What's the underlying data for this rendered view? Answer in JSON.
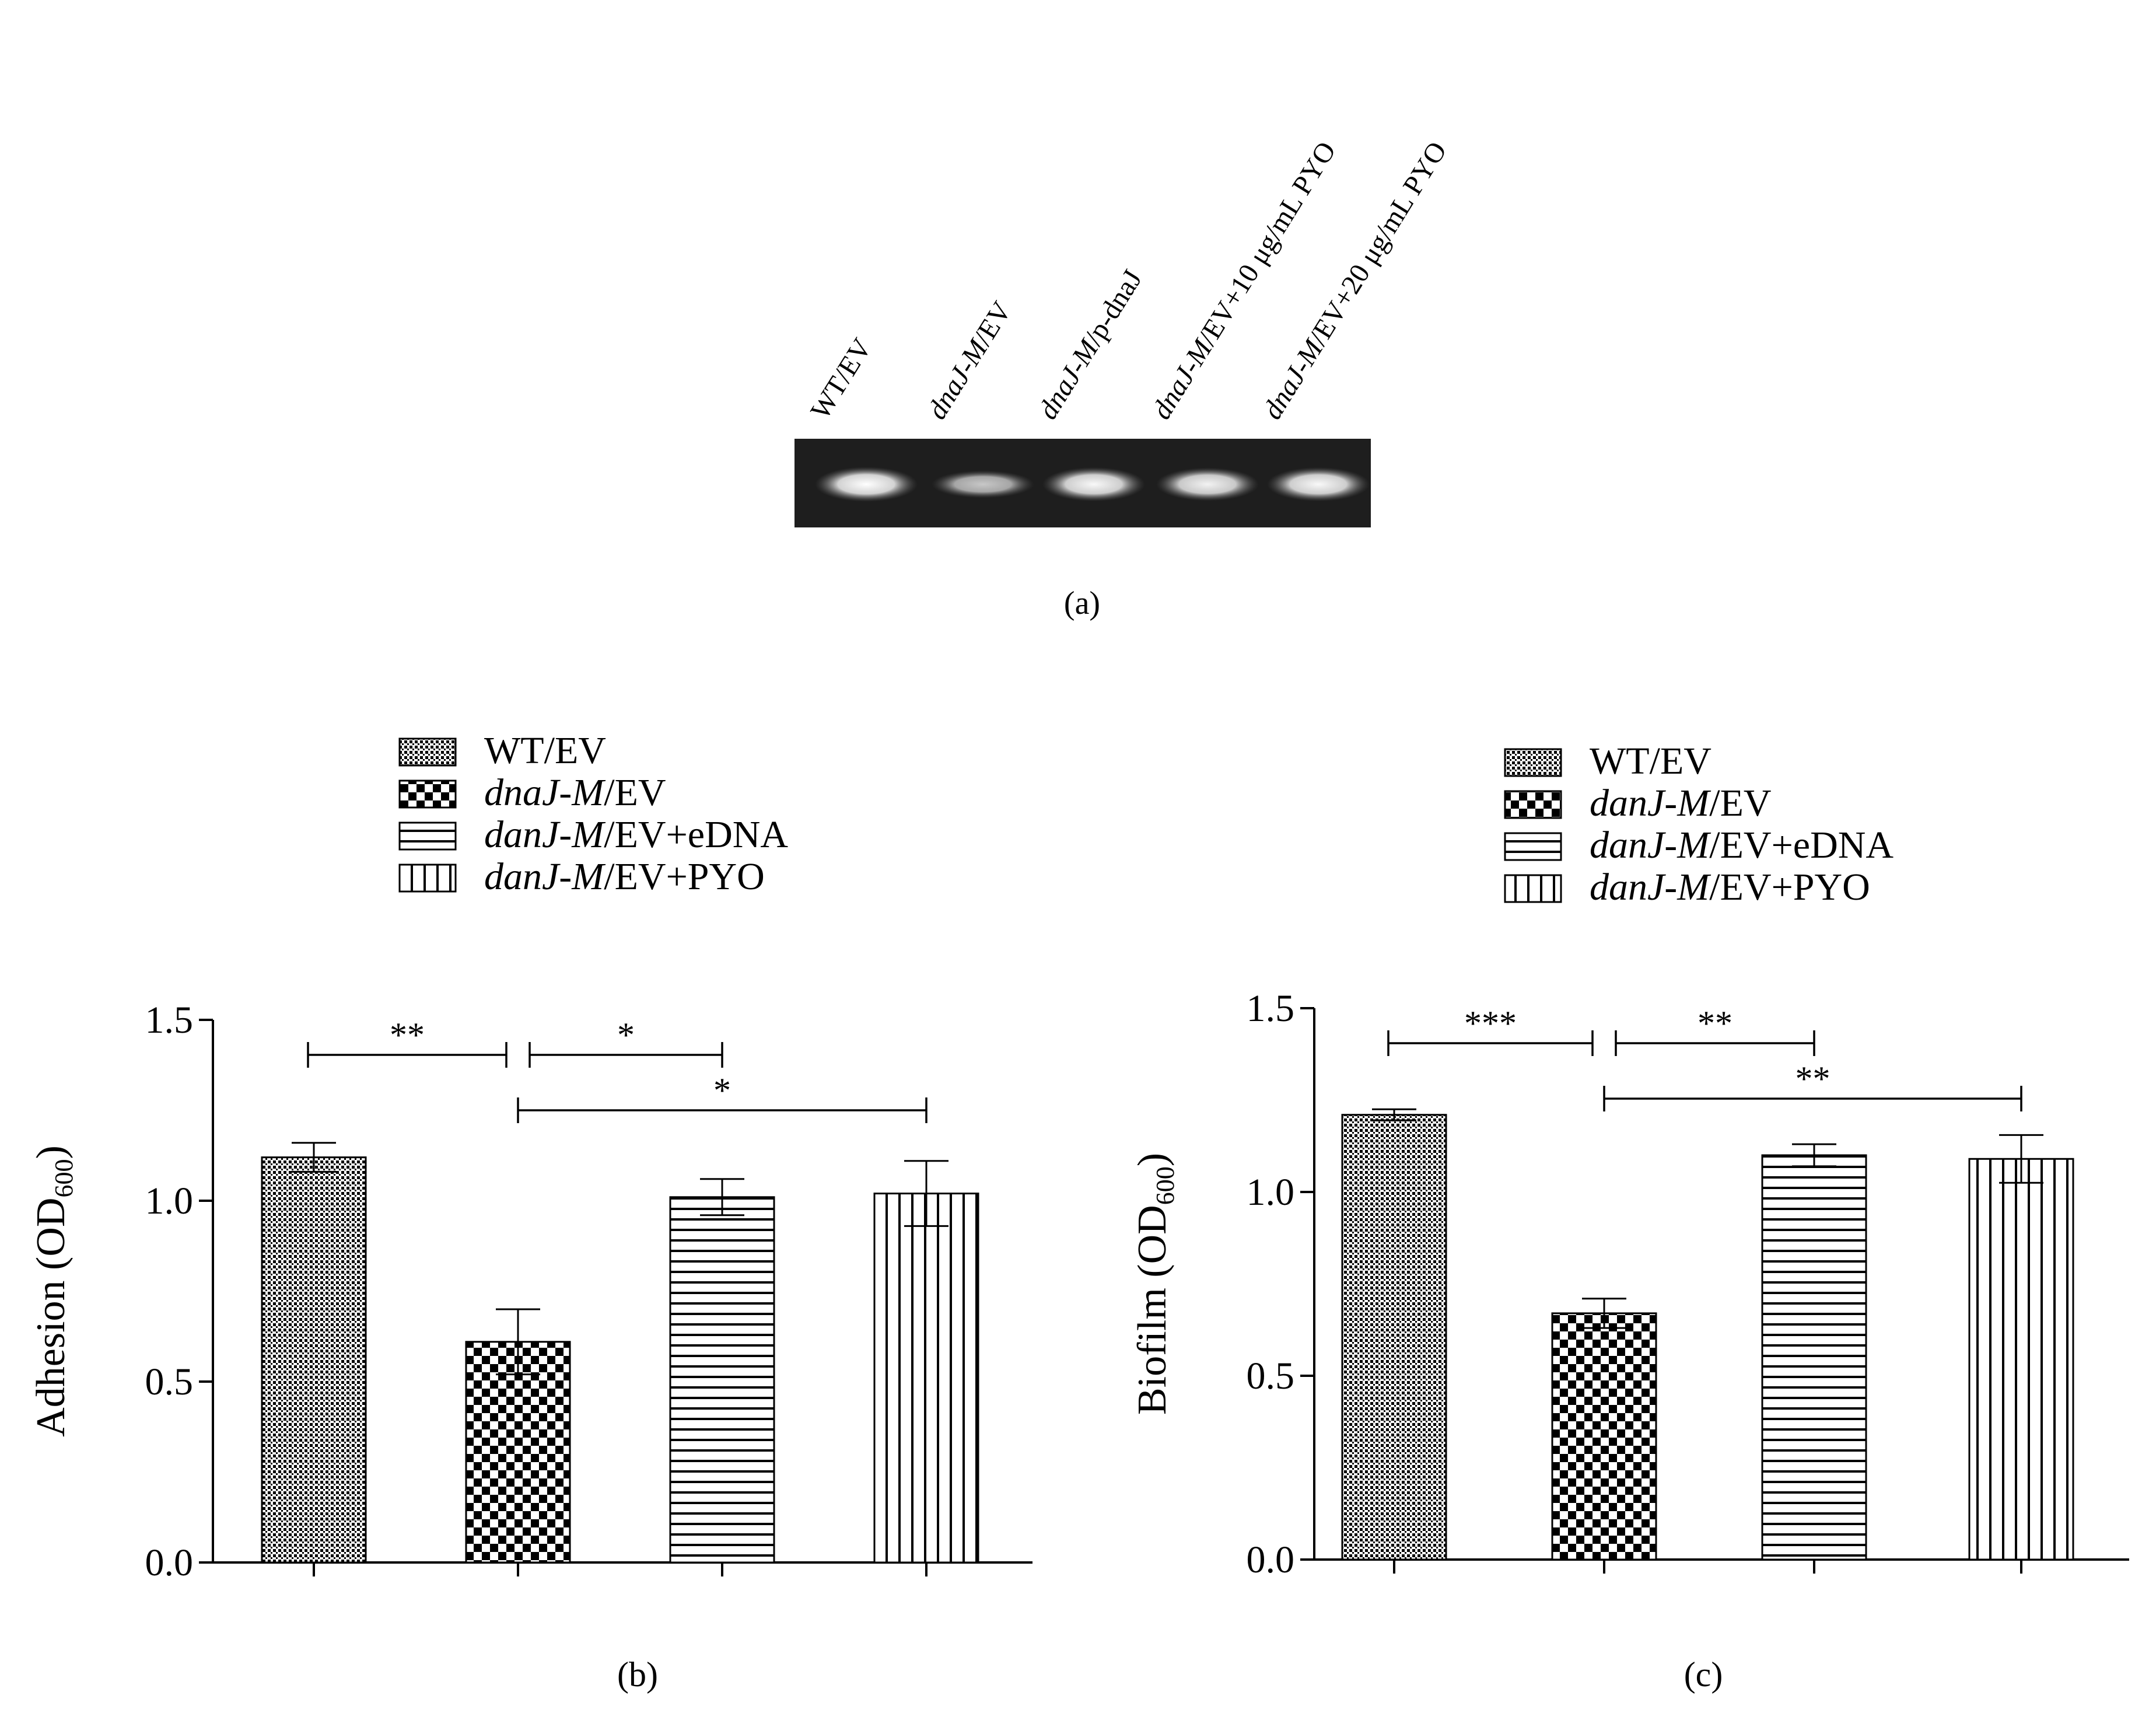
{
  "panel_a": {
    "panel_label": "(a)",
    "lanes": [
      {
        "prefix": "WT/EV",
        "suffix": ""
      },
      {
        "prefix": "dnaJ-M",
        "suffix": "/EV"
      },
      {
        "prefix": "dnaJ-M",
        "suffix": "/p-dnaJ"
      },
      {
        "prefix": "dnaJ-M",
        "suffix": "/EV+10 μg/mL PYO"
      },
      {
        "prefix": "dnaJ-M",
        "suffix": "/EV+20 μg/mL PYO"
      }
    ],
    "band_intensity": [
      1.0,
      0.55,
      0.95,
      0.9,
      0.95
    ],
    "colors": {
      "gel_background": "#1e1e1e",
      "band": "#f2f2f2"
    }
  },
  "chart_data": [
    {
      "type": "bar",
      "panel_label": "(b)",
      "ylabel": "Adhesion (OD600)",
      "ylabel_main": "Adhesion (OD",
      "ylabel_sub": "600",
      "ylabel_close": ")",
      "ylim": [
        0,
        1.5
      ],
      "yticks": [
        "0.0",
        "0.5",
        "1.0",
        "1.5"
      ],
      "ytick_values": [
        0,
        0.5,
        1.0,
        1.5
      ],
      "categories": [
        "WT/EV",
        "dnaJ-M/EV",
        "danJ-M/EV+eDNA",
        "danJ-M/EV+PYO"
      ],
      "legend": [
        {
          "italic": "",
          "plain": "WT/EV",
          "pattern": "dots"
        },
        {
          "italic": "dnaJ-M",
          "plain": "/EV",
          "pattern": "checker"
        },
        {
          "italic": "danJ-M",
          "plain": "/EV+eDNA",
          "pattern": "hlines"
        },
        {
          "italic": "danJ-M",
          "plain": "/EV+PYO",
          "pattern": "vlines"
        }
      ],
      "values": [
        1.12,
        0.61,
        1.01,
        1.02
      ],
      "errors": [
        0.04,
        0.09,
        0.05,
        0.09
      ],
      "significance": [
        {
          "from": 0,
          "to": 1,
          "label": "**",
          "level": 1
        },
        {
          "from": 1,
          "to": 2,
          "label": "*",
          "level": 1
        },
        {
          "from": 1,
          "to": 3,
          "label": "*",
          "level": 0
        }
      ]
    },
    {
      "type": "bar",
      "panel_label": "(c)",
      "ylabel": "Biofilm (OD600)",
      "ylabel_main": "Biofilm (OD",
      "ylabel_sub": "600",
      "ylabel_close": ")",
      "ylim": [
        0,
        1.5
      ],
      "yticks": [
        "0.0",
        "0.5",
        "1.0",
        "1.5"
      ],
      "ytick_values": [
        0,
        0.5,
        1.0,
        1.5
      ],
      "categories": [
        "WT/EV",
        "danJ-M/EV",
        "danJ-M/EV+eDNA",
        "danJ-M/EV+PYO"
      ],
      "legend": [
        {
          "italic": "",
          "plain": "WT/EV",
          "pattern": "dots"
        },
        {
          "italic": "danJ-M",
          "plain": "/EV",
          "pattern": "checker"
        },
        {
          "italic": "danJ-M",
          "plain": "/EV+eDNA",
          "pattern": "hlines"
        },
        {
          "italic": "danJ-M",
          "plain": "/EV+PYO",
          "pattern": "vlines"
        }
      ],
      "values": [
        1.21,
        0.67,
        1.1,
        1.09
      ],
      "errors": [
        0.015,
        0.04,
        0.03,
        0.065
      ],
      "significance": [
        {
          "from": 0,
          "to": 1,
          "label": "***",
          "level": 1
        },
        {
          "from": 1,
          "to": 2,
          "label": "**",
          "level": 1
        },
        {
          "from": 1,
          "to": 3,
          "label": "**",
          "level": 0
        }
      ]
    }
  ]
}
